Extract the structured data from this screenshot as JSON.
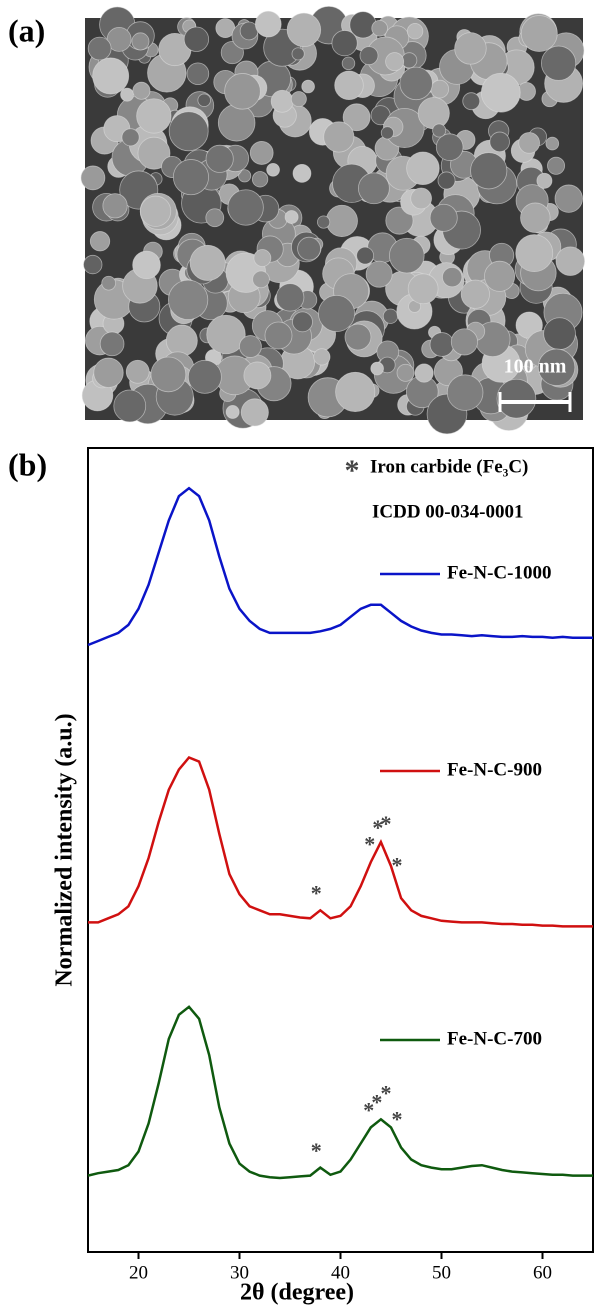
{
  "panel_a": {
    "label": "(a)",
    "scale_bar": "100 nm"
  },
  "chart_data": {
    "type": "line",
    "panel_label": "(b)",
    "xlabel": "2θ (degree)",
    "ylabel": "Normalized intensity (a.u.)",
    "note": "Iron carbide (Fe₃C)",
    "note2": "ICDD 00-034-0001",
    "marker_symbol": "*",
    "x": [
      15,
      16,
      17,
      18,
      19,
      20,
      21,
      22,
      23,
      24,
      25,
      26,
      27,
      28,
      29,
      30,
      31,
      32,
      33,
      34,
      35,
      36,
      37,
      38,
      39,
      40,
      41,
      42,
      43,
      44,
      45,
      46,
      47,
      48,
      49,
      50,
      51,
      52,
      53,
      54,
      55,
      56,
      57,
      58,
      59,
      60,
      61,
      62,
      63,
      64,
      65
    ],
    "xlim": [
      15,
      65
    ],
    "xticks": [
      20,
      30,
      40,
      50,
      60
    ],
    "ylim": [
      0,
      100
    ],
    "series": [
      {
        "name": "Fe-N-C-1000",
        "color": "#0a14c8",
        "values": [
          75.5,
          76,
          76.5,
          77,
          78,
          80,
          83,
          87,
          91,
          94,
          95,
          94,
          91,
          86.5,
          82.5,
          80,
          78.5,
          77.5,
          77,
          77,
          77,
          77,
          77,
          77.2,
          77.5,
          78,
          79,
          80,
          80.5,
          80.5,
          79.5,
          78.5,
          77.8,
          77.3,
          77,
          76.8,
          76.8,
          76.7,
          76.6,
          76.7,
          76.6,
          76.5,
          76.5,
          76.6,
          76.5,
          76.5,
          76.4,
          76.5,
          76.4,
          76.4,
          76.4
        ]
      },
      {
        "name": "Fe-N-C-900",
        "color": "#d01010",
        "values": [
          41,
          41,
          41.5,
          42,
          43,
          45.5,
          49,
          53.5,
          57.5,
          60,
          61.5,
          61,
          57.5,
          52,
          47,
          44.5,
          43,
          42.5,
          42,
          42,
          41.8,
          41.6,
          41.5,
          42.5,
          41.5,
          41.8,
          43,
          45.5,
          48.5,
          51,
          48,
          44,
          42.5,
          41.8,
          41.5,
          41.2,
          41.1,
          41,
          41,
          41,
          40.9,
          40.8,
          40.8,
          40.7,
          40.7,
          40.6,
          40.6,
          40.5,
          40.5,
          40.5,
          40.5
        ]
      },
      {
        "name": "Fe-N-C-700",
        "color": "#0f5a0f",
        "values": [
          9.5,
          9.8,
          10,
          10.2,
          10.8,
          12.5,
          16,
          21,
          26.5,
          29.5,
          30.5,
          29,
          24.5,
          18,
          13.5,
          11,
          10,
          9.5,
          9.3,
          9.2,
          9.3,
          9.4,
          9.5,
          10.5,
          9.6,
          10,
          11.5,
          13.5,
          15.5,
          16.5,
          15.5,
          13,
          11.5,
          10.8,
          10.5,
          10.3,
          10.3,
          10.5,
          10.7,
          10.8,
          10.5,
          10.2,
          10,
          9.9,
          9.8,
          9.7,
          9.6,
          9.6,
          9.5,
          9.5,
          9.5
        ]
      }
    ],
    "markers": [
      {
        "x": 37.6,
        "series": 1
      },
      {
        "x": 42.9,
        "series": 1
      },
      {
        "x": 43.7,
        "series": 1
      },
      {
        "x": 44.5,
        "series": 1
      },
      {
        "x": 45.6,
        "series": 1
      },
      {
        "x": 37.6,
        "series": 2
      },
      {
        "x": 42.8,
        "series": 2
      },
      {
        "x": 43.6,
        "series": 2
      },
      {
        "x": 44.5,
        "series": 2
      },
      {
        "x": 45.6,
        "series": 2
      }
    ]
  }
}
